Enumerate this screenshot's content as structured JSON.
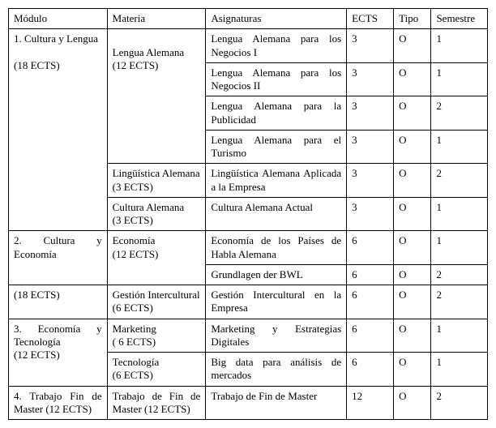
{
  "columns": [
    "Módulo",
    "Materia",
    "Asignaturas",
    "ECTS",
    "Tipo",
    "Semestre"
  ],
  "column_widths_pct": [
    21,
    21,
    30,
    10,
    8,
    12
  ],
  "font_family": "Times New Roman",
  "font_size_pt": 10,
  "border_color": "#000000",
  "background_color": "#ffffff",
  "text_color": "#000000",
  "modules": {
    "m1": {
      "label_line1": "1. Cultura y",
      "label_line2": "Lengua",
      "ects_line": "(18 ECTS)"
    },
    "m2": {
      "label_line1": "2. Cultura y",
      "label_line2": "Economía",
      "ects_line": "(18 ECTS)"
    },
    "m3": {
      "label_line1": "3. Economía y",
      "label_line2": "Tecnología",
      "ects_line": "(12 ECTS)"
    },
    "m4": {
      "label_line1": "4. Trabajo Fin de",
      "label_line2": "Master (12",
      "label_line3": "ECTS)"
    }
  },
  "materias": {
    "mat1": {
      "name": "Lengua Alemana",
      "ects": "(12 ECTS)"
    },
    "mat2": {
      "name": "Lingüística Alemana",
      "ects": "(3 ECTS)"
    },
    "mat3": {
      "name": "Cultura Alemana",
      "ects": "(3 ECTS)"
    },
    "mat4": {
      "name": "Economía",
      "ects": "(12 ECTS)"
    },
    "mat5": {
      "name": "Gestión Intercultural",
      "ects": "(6 ECTS)"
    },
    "mat6": {
      "name": "Marketing",
      "ects": "( 6 ECTS)"
    },
    "mat7": {
      "name": "Tecnología",
      "ects": "(6 ECTS)"
    },
    "mat8": {
      "name": "Trabajo de Fin de Master (12 ECTS)"
    }
  },
  "rows": [
    {
      "asignatura": "Lengua Alemana para los Negocios I",
      "ects": "3",
      "tipo": "O",
      "sem": "1"
    },
    {
      "asignatura": "Lengua Alemana para los Negocios II",
      "ects": "3",
      "tipo": "O",
      "sem": "1"
    },
    {
      "asignatura": "Lengua Alemana para la Publicidad",
      "ects": "3",
      "tipo": "O",
      "sem": "2"
    },
    {
      "asignatura": "Lengua Alemana para el Turismo",
      "ects": "3",
      "tipo": "O",
      "sem": "1"
    },
    {
      "asignatura": "Lingüística Alemana Aplicada a la Empresa",
      "ects": "3",
      "tipo": "O",
      "sem": "2"
    },
    {
      "asignatura": "Cultura Alemana Actual",
      "ects": "3",
      "tipo": "O",
      "sem": "1"
    },
    {
      "asignatura": "Economía de los Países de Habla Alemana",
      "ects": "6",
      "tipo": "O",
      "sem": "1"
    },
    {
      "asignatura": "Grundlagen der BWL",
      "ects": "6",
      "tipo": "O",
      "sem": "2"
    },
    {
      "asignatura": "Gestión Intercultural en la Empresa",
      "ects": "6",
      "tipo": "O",
      "sem": "2"
    },
    {
      "asignatura": "Marketing y Estrategias Digitales",
      "ects": "6",
      "tipo": "O",
      "sem": "1"
    },
    {
      "asignatura": "Big data para análisis de mercados",
      "ects": "6",
      "tipo": "O",
      "sem": "1"
    },
    {
      "asignatura": "Trabajo de Fin de Master",
      "ects": "12",
      "tipo": "O",
      "sem": "2"
    }
  ]
}
